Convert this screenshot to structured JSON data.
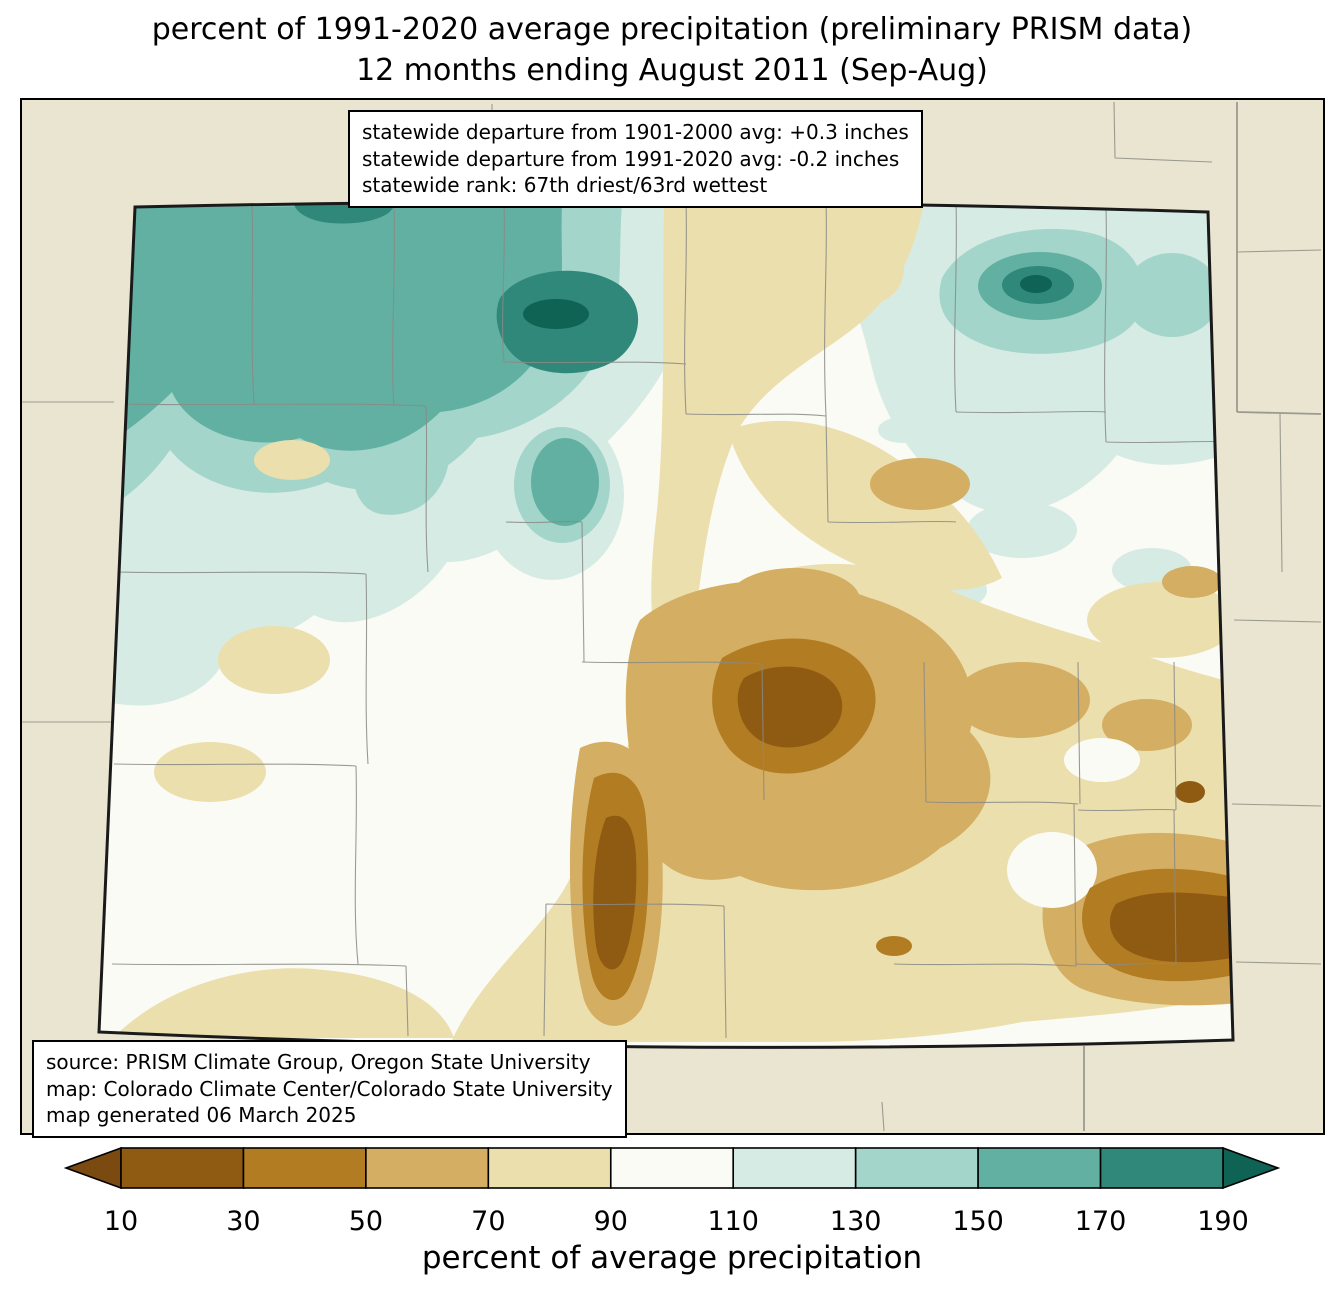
{
  "title": {
    "line1": "percent of 1991-2020 average precipitation (preliminary PRISM data)",
    "line2": "12 months ending August 2011 (Sep-Aug)"
  },
  "stats_box": {
    "lines": [
      "statewide departure from 1901-2000 avg: +0.3 inches",
      "statewide departure from 1991-2020 avg: -0.2 inches",
      "statewide rank: 67th driest/63rd wettest"
    ]
  },
  "source_box": {
    "lines": [
      "source: PRISM Climate Group, Oregon State University",
      "map: Colorado Climate Center/Colorado State University",
      "map generated 06 March 2025"
    ]
  },
  "colorbar": {
    "label": "percent of average precipitation",
    "ticks": [
      "10",
      "30",
      "50",
      "70",
      "90",
      "110",
      "130",
      "150",
      "170",
      "190"
    ],
    "under_color": "#7a4a10",
    "over_color": "#0f6354",
    "segments": [
      "#8f5a12",
      "#b27c22",
      "#d4ae62",
      "#ecdfae",
      "#fbfbf6",
      "#d7ebe5",
      "#a3d5ca",
      "#62b0a2",
      "#2f887a"
    ]
  },
  "map": {
    "region": "Colorado",
    "palette": {
      "outside": "#eae5d1",
      "b90_110": "#fbfbf6",
      "b70_90": "#ecdfae",
      "b50_70": "#d4ae62",
      "b30_50": "#b27c22",
      "b10_30": "#8f5a12",
      "under": "#7a4a10",
      "b110_130": "#d7ebe5",
      "b130_150": "#a3d5ca",
      "b150_170": "#62b0a2",
      "b170_190": "#2f887a",
      "over": "#0f6354",
      "county_line": "#8a8a85",
      "neighbor_line": "#9a9a90",
      "state_line": "#1a1a1a"
    }
  }
}
